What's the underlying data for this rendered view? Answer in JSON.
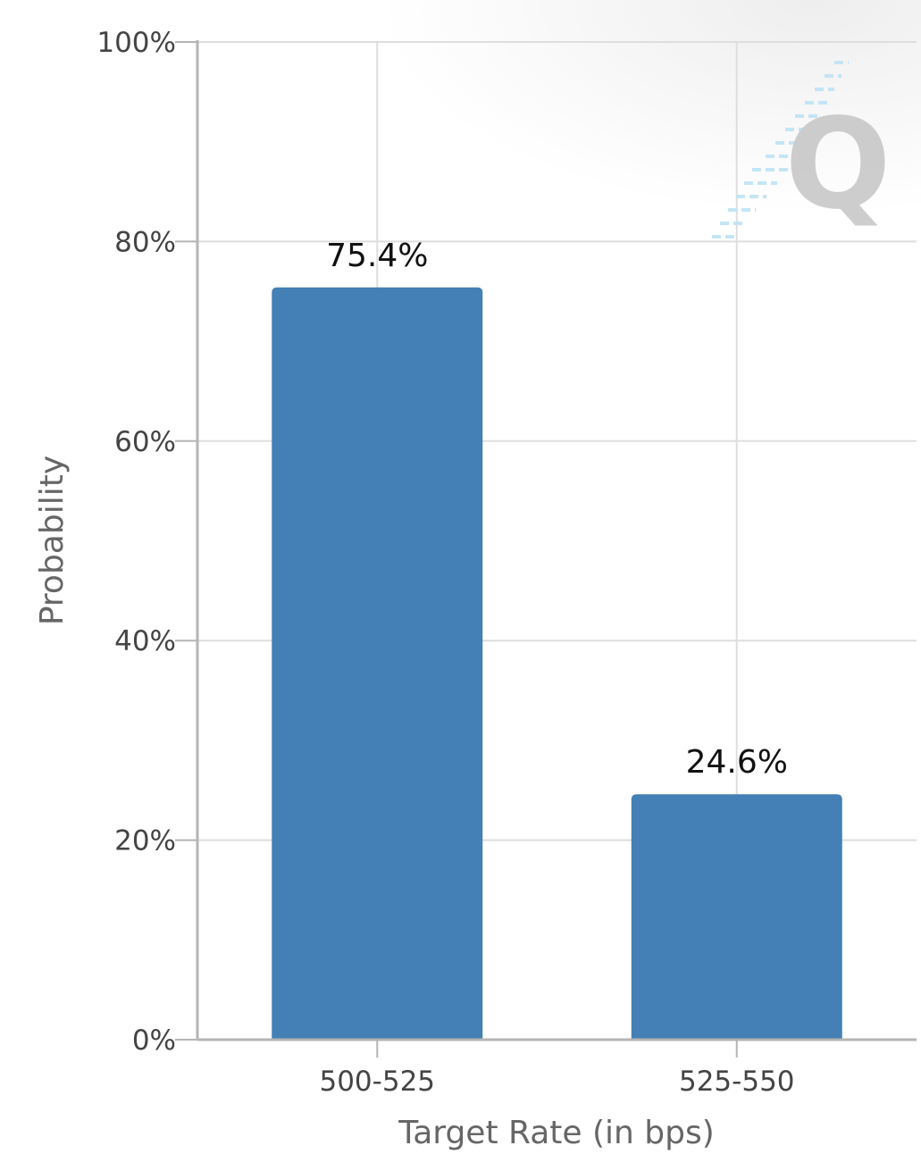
{
  "chart_data": {
    "type": "bar",
    "categories": [
      "500-525",
      "525-550"
    ],
    "values": [
      75.4,
      24.6
    ],
    "data_labels": [
      "75.4%",
      "24.6%"
    ],
    "title": "",
    "xlabel": "Target Rate (in bps)",
    "ylabel": "Probability",
    "ylim": [
      0,
      100
    ],
    "y_ticks": [
      0,
      20,
      40,
      60,
      80,
      100
    ],
    "y_tick_labels": [
      "0%",
      "20%",
      "40%",
      "60%",
      "80%",
      "100%"
    ],
    "grid": true,
    "legend": "none",
    "colors": {
      "bar": "#4480b5",
      "grid": "#dedede",
      "axis": "#b5b5b5",
      "tick_text": "#444444",
      "axis_title": "#666666",
      "data_label": "#111111"
    }
  },
  "watermark": {
    "icon": "q-logo-icon",
    "letter": "Q"
  }
}
